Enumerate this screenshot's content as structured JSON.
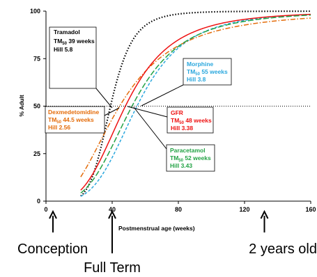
{
  "chart_data": {
    "type": "line",
    "title": "",
    "xlabel": "Postmenstrual age (weeks)",
    "ylabel": "% Adult",
    "xlim": [
      0,
      160
    ],
    "ylim": [
      0,
      100
    ],
    "xticks": [
      0,
      40,
      80,
      120,
      160
    ],
    "yticks": [
      0,
      25,
      50,
      75,
      100
    ],
    "grid": false,
    "reference_line": {
      "y": 50,
      "style": "dotted"
    },
    "series": [
      {
        "name": "Tramadol",
        "tm50_label": "TM",
        "tm50_sub": "50",
        "tm50_value": " 39 weeks",
        "hill_label": "Hill 5.8",
        "tm50": 39,
        "hill": 5.8,
        "x_start": 21,
        "color": "#000000",
        "style": "dotted"
      },
      {
        "name": "Morphine",
        "tm50_label": "TM",
        "tm50_sub": "50",
        "tm50_value": " 55 weeks",
        "hill_label": "Hill 3.8",
        "tm50": 55,
        "hill": 3.8,
        "x_start": 21,
        "color": "#2aa7dd",
        "style": "dashed"
      },
      {
        "name": "Dexmedetomidine",
        "tm50_label": "TM",
        "tm50_sub": "50",
        "tm50_value": " 44.5 weeks",
        "hill_label": "Hill 2.56",
        "tm50": 44.5,
        "hill": 2.56,
        "x_start": 21,
        "color": "#e46c0a",
        "style": "dashdot"
      },
      {
        "name": "GFR",
        "tm50_label": "TM",
        "tm50_sub": "50",
        "tm50_value": " 48 weeks",
        "hill_label": "Hill 3.38",
        "tm50": 48,
        "hill": 3.38,
        "x_start": 21,
        "color": "#ee1111",
        "style": "solid"
      },
      {
        "name": "Paracetamol",
        "tm50_label": "TM",
        "tm50_sub": "50",
        "tm50_value": " 52 weeks",
        "hill_label": "Hill 3.43",
        "tm50": 52,
        "hill": 3.43,
        "x_start": 21,
        "color": "#22a244",
        "style": "longdash"
      }
    ],
    "milestones": [
      {
        "label": "Conception",
        "x": 0
      },
      {
        "label": "Full Term",
        "x": 40
      },
      {
        "label": "2 years old",
        "x": 132
      }
    ]
  }
}
